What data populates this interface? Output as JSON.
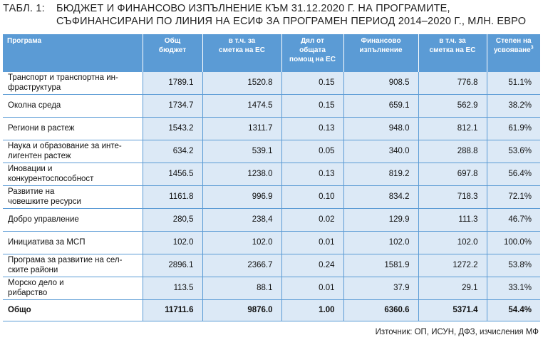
{
  "title": {
    "label": "ТАБЛ. 1:",
    "line1": "БЮДЖЕТ И ФИНАНСОВО ИЗПЪЛНЕНИЕ КЪМ 31.12.2020 Г. НА ПРОГРАМИТЕ,",
    "line2": "СЪФИНАНСИРАНИ ПО ЛИНИЯ НА ЕСИФ ЗА ПРОГРАМЕН ПЕРИОД 2014–2020 Г., МЛН. ЕВРО"
  },
  "columns": [
    {
      "line1": "Програма",
      "line2": ""
    },
    {
      "line1": "Общ",
      "line2": "бюджет"
    },
    {
      "line1": "в т.ч. за",
      "line2": "сметка на ЕС"
    },
    {
      "line1": "Дял от",
      "line2": "общата",
      "line3": "помощ на ЕС"
    },
    {
      "line1": "Финансово",
      "line2": "изпълнение"
    },
    {
      "line1": "в т.ч. за",
      "line2": "сметка на ЕС"
    },
    {
      "line1": "Степен на",
      "line2": "усвояване",
      "sup": "3"
    }
  ],
  "rows": [
    {
      "name1": "Транспорт и транспортна ин-",
      "name2": "фраструктура",
      "values": [
        "1789.1",
        "1520.8",
        "0.15",
        "908.5",
        "776.8",
        "51.1%"
      ]
    },
    {
      "name1": "Околна среда",
      "name2": "",
      "values": [
        "1734.7",
        "1474.5",
        "0.15",
        "659.1",
        "562.9",
        "38.2%"
      ]
    },
    {
      "name1": "Региони в растеж",
      "name2": "",
      "values": [
        "1543.2",
        "1311.7",
        "0.13",
        "948.0",
        "812.1",
        "61.9%"
      ]
    },
    {
      "name1": "Наука и образование за инте-",
      "name2": "лигентен растеж",
      "values": [
        "634.2",
        "539.1",
        "0.05",
        "340.0",
        "288.8",
        "53.6%"
      ]
    },
    {
      "name1": "Иновации и",
      "name2": "конкурентоспособност",
      "values": [
        "1456.5",
        "1238.0",
        "0.13",
        "819.2",
        "697.8",
        "56.4%"
      ]
    },
    {
      "name1": "Развитие на",
      "name2": "човешките ресурси",
      "values": [
        "1161.8",
        "996.9",
        "0.10",
        "834.2",
        "718.3",
        "72.1%"
      ]
    },
    {
      "name1": "Добро управление",
      "name2": "",
      "values": [
        "280,5",
        "238,4",
        "0.02",
        "129.9",
        "111.3",
        "46.7%"
      ]
    },
    {
      "name1": "Инициатива за МСП",
      "name2": "",
      "values": [
        "102.0",
        "102.0",
        "0.01",
        "102.0",
        "102.0",
        "100.0%"
      ]
    },
    {
      "name1": "Програма за развитие на сел-",
      "name2": "ските райони",
      "values": [
        "2896.1",
        "2366.7",
        "0.24",
        "1581.9",
        "1272.2",
        "53.8%"
      ]
    },
    {
      "name1": "Морско дело и",
      "name2": "рибарство",
      "values": [
        "113.5",
        "88.1",
        "0.01",
        "37.9",
        "29.1",
        "33.1%"
      ]
    }
  ],
  "total": {
    "name": "Общо",
    "values": [
      "11711.6",
      "9876.0",
      "1.00",
      "6360.6",
      "5371.4",
      "54.4%"
    ]
  },
  "source": "Източник: ОП, ИСУН, ДФЗ, изчисления МФ",
  "colors": {
    "header": "#5b9bd5",
    "cell_fill": "#dce9f6",
    "grid": "#5b9bd5"
  }
}
